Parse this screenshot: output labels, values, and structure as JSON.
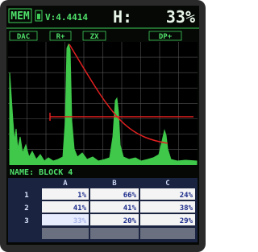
{
  "header": {
    "mode": "MEM",
    "voltage": "V:4.4414",
    "gain_label": "H:",
    "gain": "33%"
  },
  "menu": [
    "DAC",
    "R+",
    "ZX",
    "DP+"
  ],
  "name": "NAME: BLOCK 4",
  "table": {
    "columns": [
      "A",
      "B",
      "C"
    ],
    "row_labels": [
      "1",
      "2",
      "3"
    ],
    "rows": [
      [
        "1%",
        "66%",
        "24%"
      ],
      [
        "41%",
        "41%",
        "38%"
      ],
      [
        "33%",
        "20%",
        "29%"
      ]
    ]
  }
}
